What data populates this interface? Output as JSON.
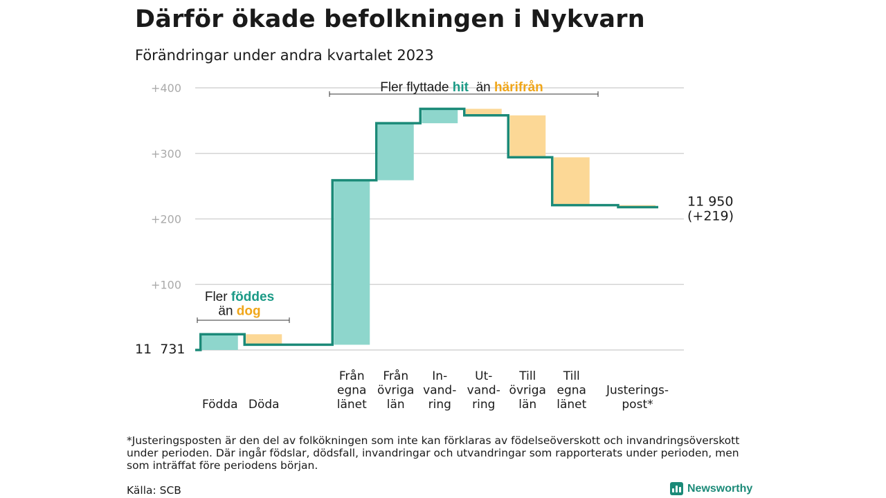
{
  "title": "Därför ökade befolkningen i Nykvarn",
  "subtitle": "Förändringar under andra kvartalet 2023",
  "colors": {
    "increase": "#8ed6cc",
    "decrease": "#fcd896",
    "line": "#1b8a78",
    "hit": "#1b9a86",
    "harifran": "#f0a61a",
    "grid": "#d4d4d4",
    "axis": "#aaaaaa"
  },
  "chart_data": {
    "type": "waterfall",
    "start_label": "11  731",
    "end_label": "11 950",
    "end_change": "(+219)",
    "ylim": [
      0,
      400
    ],
    "yticks": [
      {
        "value": 100,
        "label": "+100"
      },
      {
        "value": 200,
        "label": "+200"
      },
      {
        "value": 300,
        "label": "+300"
      },
      {
        "value": 400,
        "label": "+400"
      }
    ],
    "steps": [
      {
        "category": "Födda",
        "lines": [
          "Födda"
        ],
        "change": 24,
        "slot": 0.5,
        "dir": "increase"
      },
      {
        "category": "Döda",
        "lines": [
          "Döda"
        ],
        "change": -16,
        "slot": 1.5,
        "dir": "decrease"
      },
      {
        "category": "Från egna länet",
        "lines": [
          "Från",
          "egna",
          "länet"
        ],
        "change": 251,
        "slot": 3.5,
        "dir": "increase"
      },
      {
        "category": "Från övriga län",
        "lines": [
          "Från",
          "övriga",
          "län"
        ],
        "change": 87,
        "slot": 4.5,
        "dir": "increase"
      },
      {
        "category": "Invandring",
        "lines": [
          "In-",
          "vand-",
          "ring"
        ],
        "change": 22,
        "slot": 5.5,
        "dir": "increase"
      },
      {
        "category": "Utvandring",
        "lines": [
          "Ut-",
          "vand-",
          "ring"
        ],
        "change": -10,
        "slot": 6.5,
        "dir": "decrease"
      },
      {
        "category": "Till övriga län",
        "lines": [
          "Till",
          "övriga",
          "län"
        ],
        "change": -64,
        "slot": 7.5,
        "dir": "decrease"
      },
      {
        "category": "Till egna länet",
        "lines": [
          "Till",
          "egna",
          "länet"
        ],
        "change": -73,
        "slot": 8.5,
        "dir": "decrease"
      },
      {
        "category": "Justeringspost*",
        "lines": [
          "Justerings-",
          "post*"
        ],
        "change": -3,
        "slot": 10,
        "dir": "decrease"
      }
    ],
    "annotations": [
      {
        "id": "births",
        "parts": [
          {
            "line": 0,
            "text": "Fler ",
            "role": "plain"
          },
          {
            "line": 0,
            "text": "föddes",
            "role": "hit"
          },
          {
            "line": 1,
            "text": "än ",
            "role": "plain"
          },
          {
            "line": 1,
            "text": "dog",
            "role": "harifran"
          }
        ]
      },
      {
        "id": "migration",
        "parts": [
          {
            "line": 0,
            "text": "Fler flyttade ",
            "role": "plain"
          },
          {
            "line": 0,
            "text": "hit",
            "role": "hit"
          },
          {
            "line": 0,
            "text": "  än ",
            "role": "plain"
          },
          {
            "line": 0,
            "text": "härifrån",
            "role": "harifran"
          }
        ]
      }
    ]
  },
  "footnote": "*Justeringsposten är den del av folkökningen som inte kan förklaras av födelseöverskott och invandringsöverskott under perioden. Där ingår födslar, dödsfall, invandringar och utvandringar som rapporterats under perioden, men som inträffat före periodens början.",
  "source": "Källa: SCB",
  "brand": "Newsworthy"
}
